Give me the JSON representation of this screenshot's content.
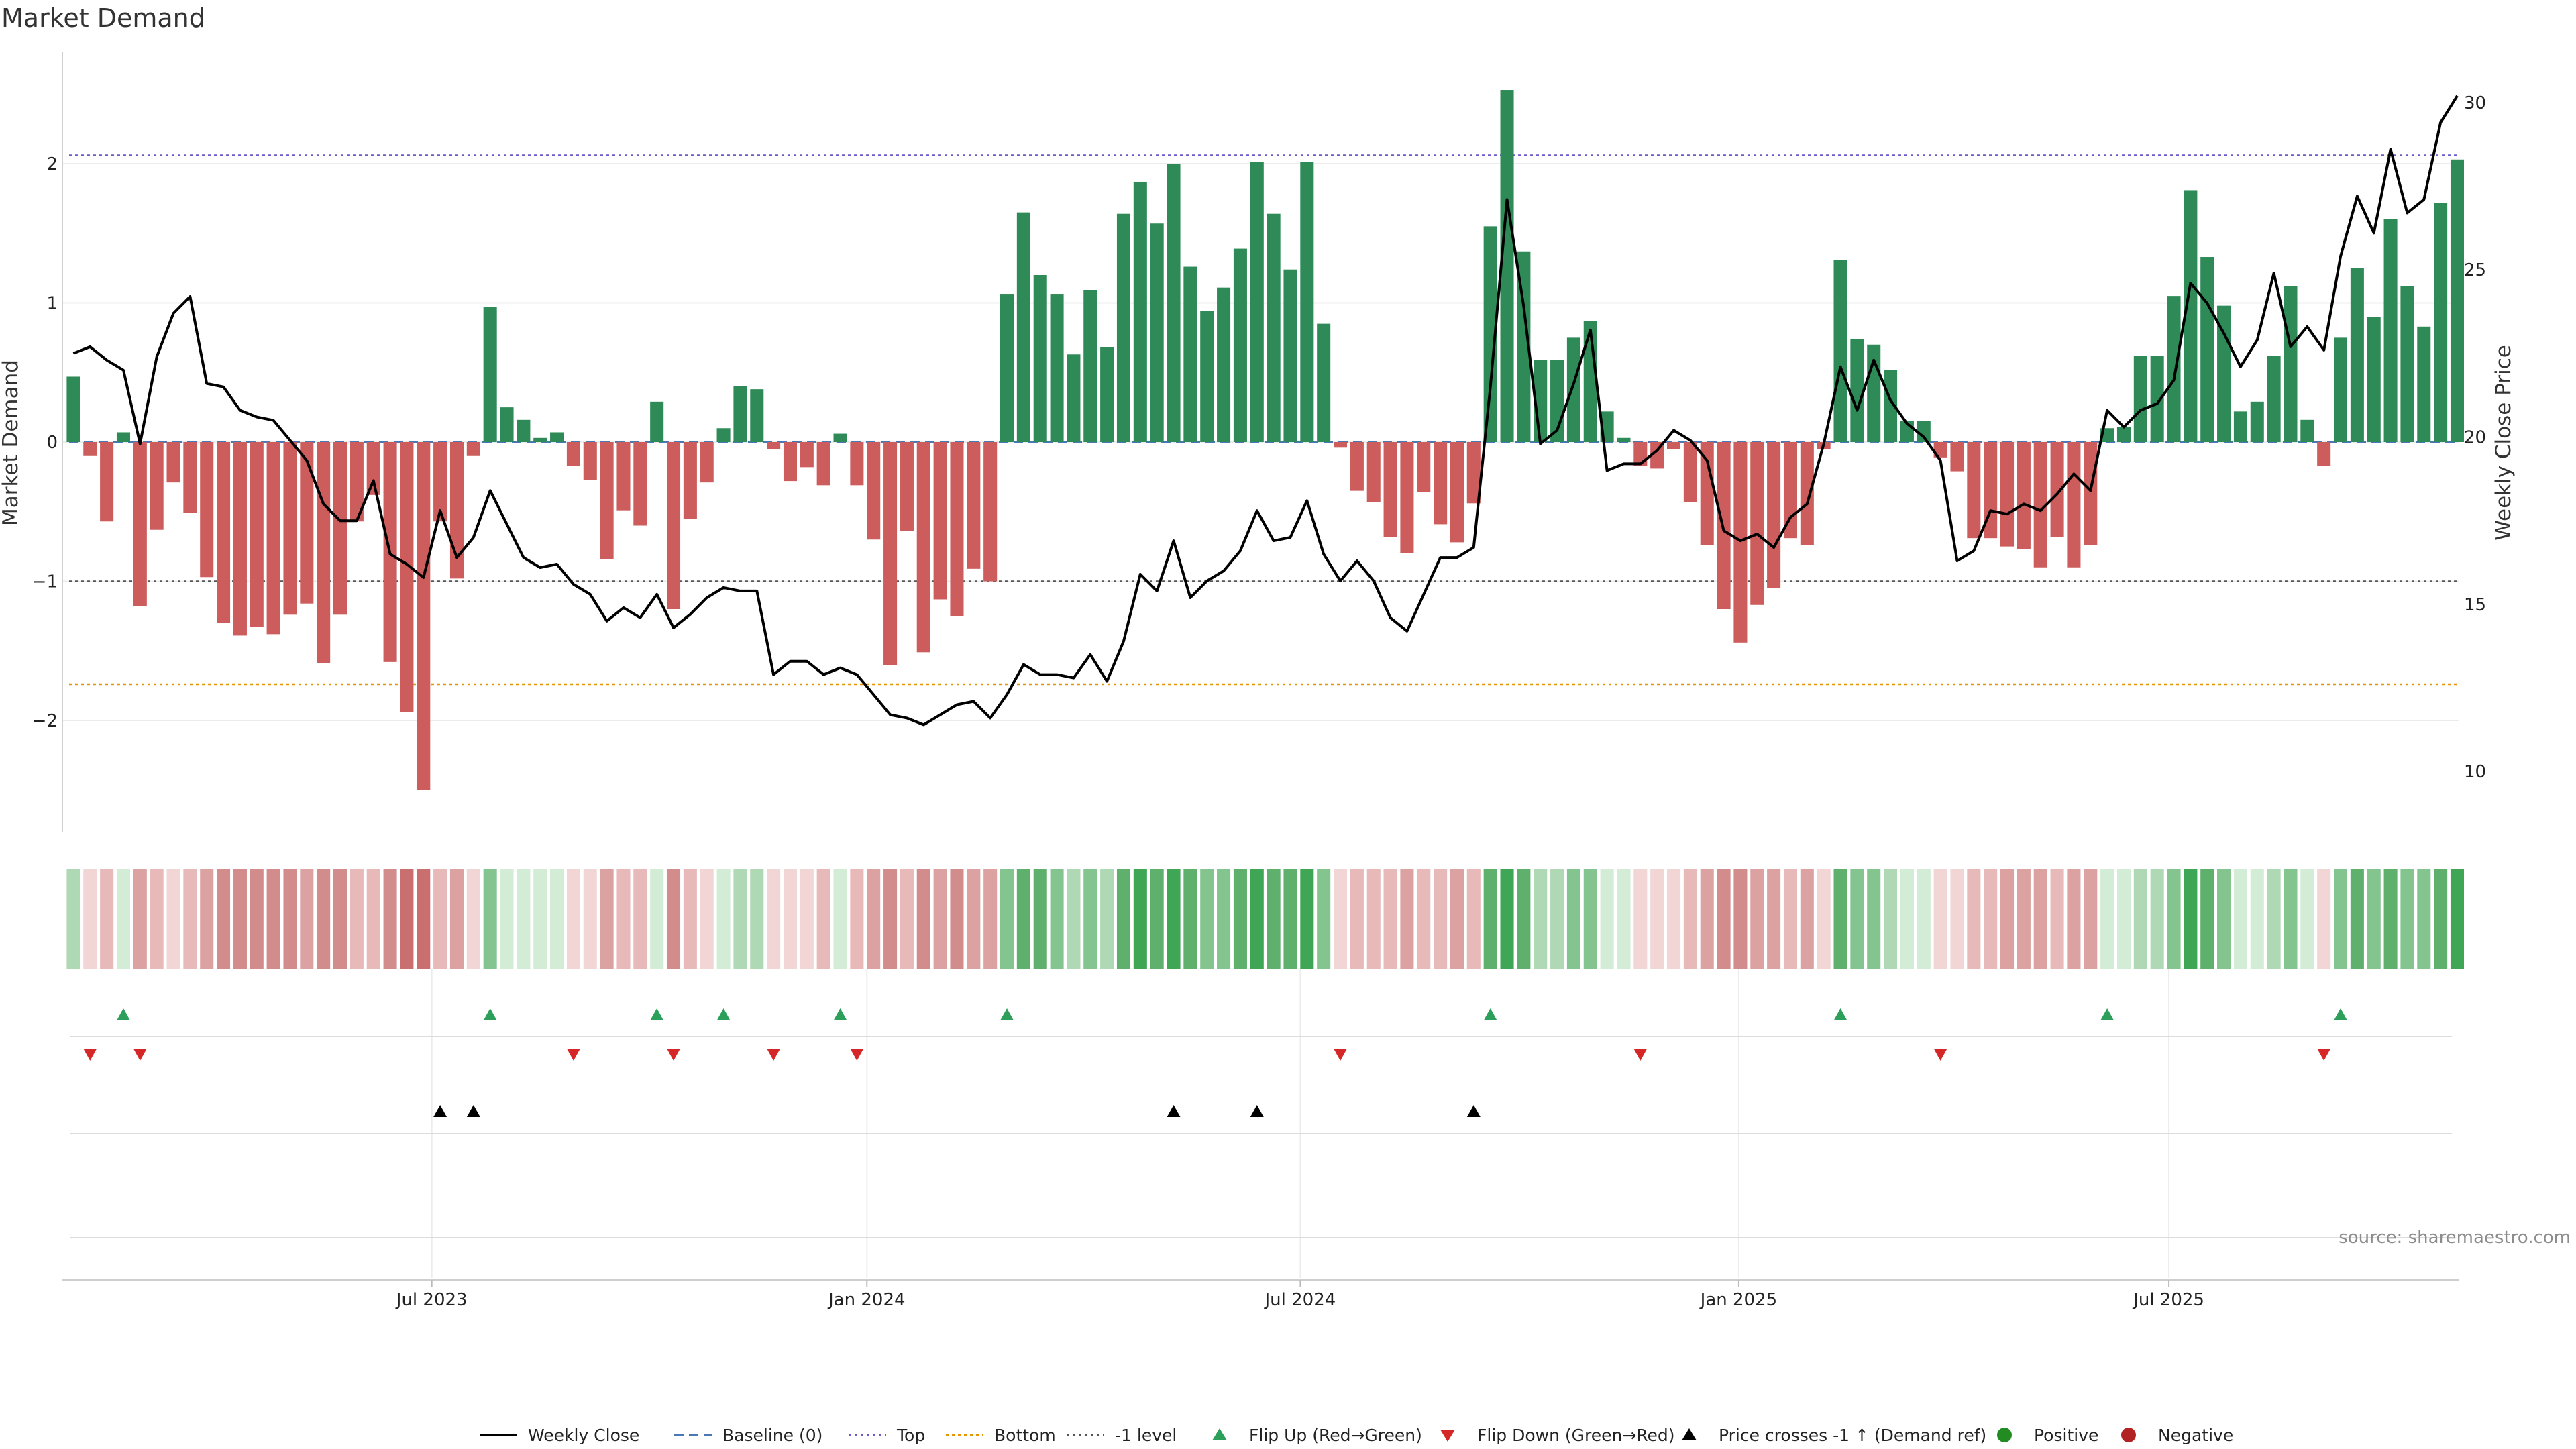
{
  "chart_data": {
    "type": "bar",
    "title": "Market Demand",
    "ylabel_left": "Market Demand",
    "ylabel_right": "Weekly Close Price",
    "ylim_left": [
      -2.8,
      2.8
    ],
    "ylim_right": [
      8.2,
      31.5
    ],
    "yticks_left": [
      {
        "value": 2,
        "label": "2"
      },
      {
        "value": 1,
        "label": "1"
      },
      {
        "value": 0,
        "label": "0"
      },
      {
        "value": -1,
        "label": "−1"
      },
      {
        "value": -2,
        "label": "−2"
      }
    ],
    "yticks_right": [
      {
        "value": 30,
        "label": "30"
      },
      {
        "value": 25,
        "label": "25"
      },
      {
        "value": 20,
        "label": "20"
      },
      {
        "value": 15,
        "label": "15"
      },
      {
        "value": 10,
        "label": "10"
      }
    ],
    "xticks": [
      {
        "index": 21.5,
        "label": "Jul 2023"
      },
      {
        "index": 47.6,
        "label": "Jan 2024"
      },
      {
        "index": 73.6,
        "label": "Jul 2024"
      },
      {
        "index": 99.9,
        "label": "Jan 2025"
      },
      {
        "index": 125.7,
        "label": "Jul 2025"
      }
    ],
    "reference_lines": {
      "top": 2.06,
      "bottom": -1.74,
      "minus_one": -1.0,
      "baseline": 0.0
    },
    "demand": [
      0.47,
      -0.1,
      -0.57,
      0.07,
      -1.18,
      -0.63,
      -0.29,
      -0.51,
      -0.97,
      -1.3,
      -1.39,
      -1.33,
      -1.38,
      -1.24,
      -1.16,
      -1.59,
      -1.24,
      -0.57,
      -0.38,
      -1.58,
      -1.94,
      -2.5,
      -0.57,
      -0.98,
      -0.1,
      0.97,
      0.25,
      0.16,
      0.03,
      0.07,
      -0.17,
      -0.27,
      -0.84,
      -0.49,
      -0.6,
      0.29,
      -1.2,
      -0.55,
      -0.29,
      0.1,
      0.4,
      0.38,
      -0.05,
      -0.28,
      -0.18,
      -0.31,
      0.06,
      -0.31,
      -0.7,
      -1.6,
      -0.64,
      -1.51,
      -1.13,
      -1.25,
      -0.91,
      -1.0,
      1.06,
      1.65,
      1.2,
      1.06,
      0.63,
      1.09,
      0.68,
      1.64,
      1.87,
      1.57,
      2.0,
      1.26,
      0.94,
      1.11,
      1.39,
      2.01,
      1.64,
      1.24,
      2.01,
      0.85,
      -0.04,
      -0.35,
      -0.43,
      -0.68,
      -0.8,
      -0.36,
      -0.59,
      -0.72,
      -0.44,
      1.55,
      2.53,
      1.37,
      0.59,
      0.59,
      0.75,
      0.87,
      0.22,
      0.03,
      -0.17,
      -0.19,
      -0.05,
      -0.43,
      -0.74,
      -1.2,
      -1.44,
      -1.17,
      -1.05,
      -0.69,
      -0.74,
      -0.05,
      1.31,
      0.74,
      0.7,
      0.52,
      0.15,
      0.15,
      -0.11,
      -0.21,
      -0.69,
      -0.69,
      -0.75,
      -0.77,
      -0.9,
      -0.68,
      -0.9,
      -0.74,
      0.1,
      0.11,
      0.62,
      0.62,
      1.05,
      1.81,
      1.33,
      0.98,
      0.22,
      0.29,
      0.62,
      1.12,
      0.16,
      -0.17,
      0.75,
      1.25,
      0.9,
      1.6,
      1.12,
      0.83,
      1.72,
      2.03
    ],
    "price_series": [
      {
        "name": "Weekly Close",
        "values": [
          22.5,
          22.7,
          22.3,
          22.0,
          19.8,
          22.4,
          23.7,
          24.2,
          21.6,
          21.5,
          20.8,
          20.6,
          20.5,
          19.9,
          19.3,
          18.0,
          17.5,
          17.5,
          18.7,
          16.5,
          16.2,
          15.8,
          17.8,
          16.4,
          17.0,
          18.4,
          17.4,
          16.4,
          16.1,
          16.2,
          15.6,
          15.3,
          14.5,
          14.9,
          14.6,
          15.3,
          14.3,
          14.7,
          15.2,
          15.5,
          15.4,
          15.4,
          12.9,
          13.3,
          13.3,
          12.9,
          13.1,
          12.9,
          12.3,
          11.7,
          11.6,
          11.4,
          11.7,
          12.0,
          12.1,
          11.6,
          12.3,
          13.2,
          12.9,
          12.9,
          12.8,
          13.5,
          12.7,
          13.9,
          15.9,
          15.4,
          16.9,
          15.2,
          15.7,
          16.0,
          16.6,
          17.8,
          16.9,
          17.0,
          18.1,
          16.5,
          15.7,
          16.3,
          15.7,
          14.6,
          14.2,
          15.3,
          16.4,
          16.4,
          16.7,
          21.5,
          27.1,
          23.9,
          19.8,
          20.2,
          21.6,
          23.2,
          19.0,
          19.2,
          19.2,
          19.6,
          20.2,
          19.9,
          19.3,
          17.2,
          16.9,
          17.1,
          16.7,
          17.6,
          18.0,
          19.8,
          22.1,
          20.8,
          22.3,
          21.1,
          20.4,
          20.0,
          19.3,
          16.3,
          16.6,
          17.8,
          17.7,
          18.0,
          17.8,
          18.3,
          18.9,
          18.4,
          20.8,
          20.3,
          20.8,
          21.0,
          21.7,
          24.6,
          24.0,
          23.1,
          22.1,
          22.9,
          24.9,
          22.7,
          23.3,
          22.6,
          25.4,
          27.2,
          26.1,
          28.6,
          26.7,
          27.1,
          29.4,
          30.2
        ]
      }
    ],
    "flip_up_indices": [
      3,
      25,
      35,
      39,
      46,
      56,
      85,
      106,
      122,
      136
    ],
    "flip_down_indices": [
      1,
      4,
      30,
      36,
      42,
      47,
      76,
      94,
      112,
      135
    ],
    "price_cross_indices": [
      22,
      24,
      66,
      71,
      84
    ],
    "heat_colors": {
      "positive": [
        "#d3ecd5",
        "#aed9b4",
        "#84c48e",
        "#5fb06d",
        "#3ea654"
      ],
      "negative": [
        "#f2d6d6",
        "#e8b9b9",
        "#dca2a2",
        "#d28c8c",
        "#c96f6f"
      ]
    },
    "legend": [
      {
        "key": "close",
        "label": "Weekly Close"
      },
      {
        "key": "baseline",
        "label": "Baseline (0)"
      },
      {
        "key": "top",
        "label": "Top"
      },
      {
        "key": "bottom",
        "label": "Bottom"
      },
      {
        "key": "minus1",
        "label": "-1 level"
      },
      {
        "key": "flipup",
        "label": "Flip Up (Red→Green)"
      },
      {
        "key": "flipdown",
        "label": "Flip Down (Green→Red)"
      },
      {
        "key": "cross",
        "label": "Price crosses -1 ↑ (Demand ref)"
      },
      {
        "key": "positive",
        "label": "Positive"
      },
      {
        "key": "negative",
        "label": "Negative"
      }
    ],
    "source": "source: sharemaestro.com"
  },
  "colors": {
    "bar_positive": "#2e8b57",
    "bar_negative": "#cd5c5c",
    "price_line": "#000000",
    "top_line": "#6a5acd",
    "bottom_line": "#e69500",
    "minus_one_line": "#555555",
    "baseline_line": "#4a78b5",
    "flip_up_marker": "#2ca05a",
    "flip_down_marker": "#d62728",
    "cross_marker": "#000000",
    "legend_positive_dot": "#228b22",
    "legend_negative_dot": "#b22222"
  }
}
